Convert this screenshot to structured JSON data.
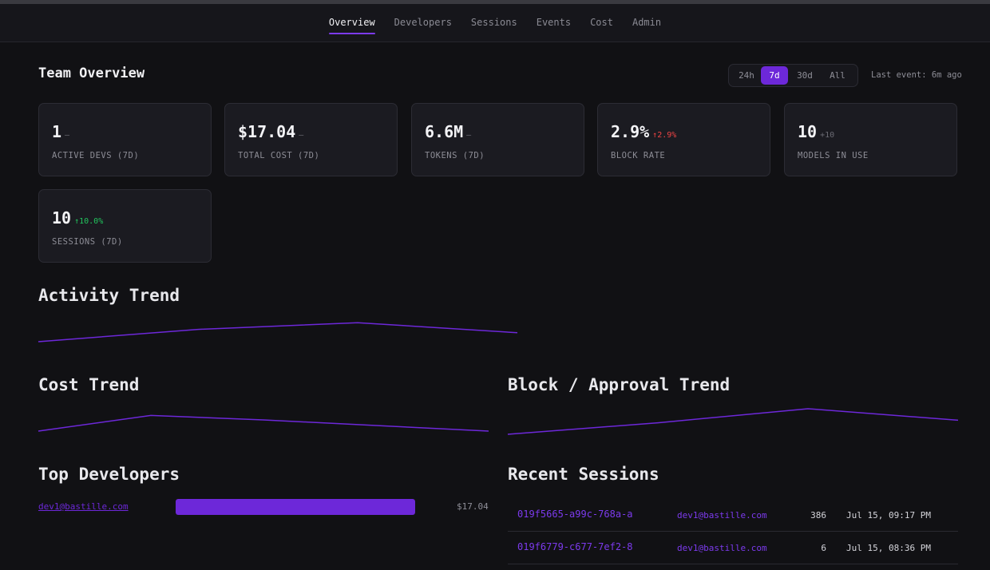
{
  "nav": {
    "tabs": [
      {
        "label": "Overview",
        "active": true
      },
      {
        "label": "Developers",
        "active": false
      },
      {
        "label": "Sessions",
        "active": false
      },
      {
        "label": "Events",
        "active": false
      },
      {
        "label": "Cost",
        "active": false
      },
      {
        "label": "Admin",
        "active": false
      }
    ]
  },
  "header": {
    "title": "Team Overview",
    "ranges": [
      "24h",
      "7d",
      "30d",
      "All"
    ],
    "selected_range": "7d",
    "last_event": "Last event: 6m ago"
  },
  "accent_color": "#6d28d9",
  "metrics": [
    {
      "value": "1",
      "delta": "—",
      "label": "ACTIVE DEVS (7D)"
    },
    {
      "value": "$17.04",
      "delta": "—",
      "label": "TOTAL COST (7D)"
    },
    {
      "value": "6.6M",
      "delta": "—",
      "label": "TOKENS (7D)"
    },
    {
      "value": "2.9%",
      "delta": "↑2.9%",
      "label": "BLOCK RATE"
    },
    {
      "value": "10",
      "delta": "+10",
      "label": "MODELS IN USE"
    },
    {
      "value": "10",
      "delta": "↑10.0%",
      "label": "SESSIONS (7D)"
    }
  ],
  "sections": {
    "activity": "Activity Trend",
    "cost": "Cost Trend",
    "block": "Block / Approval Trend",
    "top_devs": "Top Developers",
    "recent": "Recent Sessions"
  },
  "trends": {
    "activity": [
      0.0,
      0.55,
      0.85,
      0.4
    ],
    "cost": [
      0.0,
      0.7,
      0.5,
      0.25,
      0.0
    ],
    "block": [
      0.0,
      0.45,
      1.0,
      0.55
    ]
  },
  "top_developers": [
    {
      "email": "dev1@bastille.com",
      "share": 1.0,
      "cost": "$17.04"
    }
  ],
  "recent_sessions": [
    {
      "id": "019f5665-a99c-768a-a",
      "email": "dev1@bastille.com",
      "count": "386",
      "time": "Jul 15, 09:17 PM"
    },
    {
      "id": "019f6779-c677-7ef2-8",
      "email": "dev1@bastille.com",
      "count": "6",
      "time": "Jul 15, 08:36 PM"
    }
  ]
}
